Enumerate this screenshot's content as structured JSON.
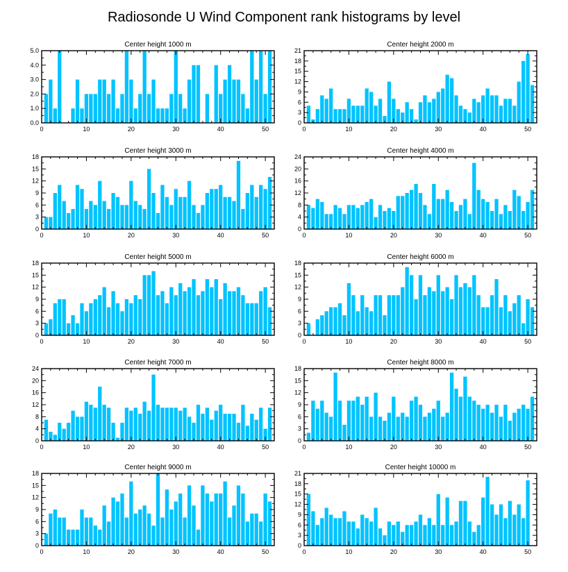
{
  "figure": {
    "title": "Radiosonde U Wind Component rank histograms by level",
    "bar_color": "#00c3ff"
  },
  "chart_data": [
    {
      "type": "bar",
      "title": "Center height 1000 m",
      "xlim": [
        0,
        52
      ],
      "ylim": [
        0,
        5
      ],
      "yticks": [
        0,
        1,
        2,
        3,
        4,
        5
      ],
      "ytick_labels": [
        "0.0",
        "1.0",
        "2.0",
        "3.0",
        "4.0",
        "5.0"
      ],
      "xticks": [
        0,
        10,
        20,
        30,
        40,
        50
      ],
      "values": [
        2,
        3,
        1,
        5,
        0,
        0,
        1,
        3,
        1,
        2,
        2,
        2,
        3,
        3,
        2,
        3,
        1,
        2,
        5,
        3,
        1,
        2,
        5,
        2,
        3,
        1,
        1,
        1,
        2,
        5,
        2,
        1,
        3,
        4,
        4,
        0,
        2,
        0,
        4,
        2,
        3,
        4,
        3,
        3,
        2,
        1,
        5,
        3,
        5,
        2,
        5
      ]
    },
    {
      "type": "bar",
      "title": "Center height 2000 m",
      "xlim": [
        0,
        52
      ],
      "ylim": [
        0,
        21
      ],
      "yticks": [
        0,
        3,
        6,
        9,
        12,
        15,
        18,
        21
      ],
      "ytick_labels": [
        "0",
        "3",
        "6",
        "9",
        "12",
        "15",
        "18",
        "21"
      ],
      "xticks": [
        0,
        10,
        20,
        30,
        40,
        50
      ],
      "values": [
        5,
        1,
        4,
        8,
        7,
        10,
        4,
        4,
        4,
        7,
        5,
        5,
        5,
        10,
        9,
        5,
        7,
        2,
        12,
        7,
        4,
        3,
        6,
        4,
        1,
        6,
        8,
        6,
        7,
        9,
        10,
        14,
        13,
        8,
        5,
        4,
        3,
        7,
        6,
        8,
        10,
        8,
        8,
        5,
        7,
        7,
        5,
        12,
        18,
        20,
        11
      ]
    },
    {
      "type": "bar",
      "title": "Center height 3000 m",
      "xlim": [
        0,
        52
      ],
      "ylim": [
        0,
        18
      ],
      "yticks": [
        0,
        3,
        6,
        9,
        12,
        15,
        18
      ],
      "ytick_labels": [
        "0",
        "3",
        "6",
        "9",
        "12",
        "15",
        "18"
      ],
      "xticks": [
        0,
        10,
        20,
        30,
        40,
        50
      ],
      "values": [
        3,
        3,
        9,
        11,
        7,
        4,
        5,
        11,
        10,
        5,
        7,
        6,
        12,
        7,
        5,
        9,
        8,
        6,
        6,
        12,
        7,
        6,
        5,
        15,
        9,
        4,
        11,
        8,
        6,
        10,
        8,
        8,
        12,
        6,
        4,
        6,
        9,
        10,
        10,
        11,
        8,
        8,
        7,
        17,
        5,
        9,
        11,
        8,
        11,
        10,
        13
      ]
    },
    {
      "type": "bar",
      "title": "Center height 4000 m",
      "xlim": [
        0,
        52
      ],
      "ylim": [
        0,
        24
      ],
      "yticks": [
        0,
        4,
        8,
        12,
        16,
        20,
        24
      ],
      "ytick_labels": [
        "0",
        "4",
        "8",
        "12",
        "16",
        "20",
        "24"
      ],
      "xticks": [
        0,
        10,
        20,
        30,
        40,
        50
      ],
      "values": [
        8,
        7,
        10,
        9,
        5,
        5,
        8,
        7,
        5,
        8,
        8,
        7,
        8,
        9,
        10,
        4,
        8,
        6,
        7,
        6,
        11,
        11,
        12,
        13,
        15,
        12,
        8,
        5,
        15,
        10,
        10,
        13,
        9,
        6,
        8,
        10,
        5,
        22,
        13,
        10,
        9,
        6,
        10,
        5,
        8,
        6,
        13,
        11,
        6,
        9,
        13
      ]
    },
    {
      "type": "bar",
      "title": "Center height 5000 m",
      "xlim": [
        0,
        52
      ],
      "ylim": [
        0,
        18
      ],
      "yticks": [
        0,
        3,
        6,
        9,
        12,
        15,
        18
      ],
      "ytick_labels": [
        "0",
        "3",
        "6",
        "9",
        "12",
        "15",
        "18"
      ],
      "xticks": [
        0,
        10,
        20,
        30,
        40,
        50
      ],
      "values": [
        3,
        4,
        8,
        9,
        9,
        3,
        5,
        3,
        8,
        6,
        8,
        9,
        10,
        12,
        7,
        11,
        8,
        6,
        9,
        8,
        10,
        9,
        15,
        15,
        16,
        10,
        11,
        8,
        12,
        10,
        13,
        11,
        12,
        14,
        10,
        11,
        14,
        12,
        14,
        9,
        13,
        11,
        11,
        12,
        10,
        8,
        8,
        8,
        11,
        12,
        7
      ]
    },
    {
      "type": "bar",
      "title": "Center height 6000 m",
      "xlim": [
        0,
        52
      ],
      "ylim": [
        0,
        18
      ],
      "yticks": [
        0,
        3,
        6,
        9,
        12,
        15,
        18
      ],
      "ytick_labels": [
        "0",
        "3",
        "6",
        "9",
        "12",
        "15",
        "18"
      ],
      "xticks": [
        0,
        10,
        20,
        30,
        40,
        50
      ],
      "values": [
        3,
        0,
        4,
        5,
        6,
        7,
        7,
        8,
        5,
        13,
        10,
        6,
        10,
        7,
        6,
        10,
        10,
        5,
        10,
        10,
        10,
        12,
        17,
        15,
        9,
        15,
        10,
        12,
        11,
        15,
        11,
        12,
        9,
        15,
        12,
        13,
        12,
        15,
        10,
        7,
        7,
        10,
        14,
        7,
        10,
        6,
        8,
        10,
        3,
        9,
        7
      ]
    },
    {
      "type": "bar",
      "title": "Center height 7000 m",
      "xlim": [
        0,
        52
      ],
      "ylim": [
        0,
        24
      ],
      "yticks": [
        0,
        4,
        8,
        12,
        16,
        20,
        24
      ],
      "ytick_labels": [
        "0",
        "4",
        "8",
        "12",
        "16",
        "20",
        "24"
      ],
      "xticks": [
        0,
        10,
        20,
        30,
        40,
        50
      ],
      "values": [
        7,
        3,
        2,
        6,
        4,
        6,
        10,
        8,
        8,
        13,
        12,
        11,
        18,
        12,
        11,
        6,
        1,
        6,
        11,
        10,
        11,
        9,
        13,
        10,
        22,
        12,
        11,
        11,
        11,
        11,
        10,
        11,
        8,
        6,
        12,
        9,
        11,
        7,
        10,
        12,
        9,
        9,
        9,
        6,
        12,
        5,
        9,
        7,
        11,
        4,
        11
      ]
    },
    {
      "type": "bar",
      "title": "Center height 8000 m",
      "xlim": [
        0,
        52
      ],
      "ylim": [
        0,
        18
      ],
      "yticks": [
        0,
        3,
        6,
        9,
        12,
        15,
        18
      ],
      "ytick_labels": [
        "0",
        "3",
        "6",
        "9",
        "12",
        "15",
        "18"
      ],
      "xticks": [
        0,
        10,
        20,
        30,
        40,
        50
      ],
      "values": [
        2,
        10,
        8,
        10,
        7,
        6,
        17,
        10,
        4,
        10,
        10,
        11,
        9,
        11,
        6,
        12,
        6,
        5,
        7,
        11,
        6,
        7,
        6,
        10,
        11,
        9,
        6,
        7,
        8,
        10,
        6,
        7,
        17,
        13,
        11,
        16,
        11,
        10,
        9,
        8,
        9,
        7,
        9,
        6,
        9,
        5,
        7,
        8,
        9,
        8,
        11
      ]
    },
    {
      "type": "bar",
      "title": "Center height 9000 m",
      "xlim": [
        0,
        52
      ],
      "ylim": [
        0,
        18
      ],
      "yticks": [
        0,
        3,
        6,
        9,
        12,
        15,
        18
      ],
      "ytick_labels": [
        "0",
        "3",
        "6",
        "9",
        "12",
        "15",
        "18"
      ],
      "xticks": [
        0,
        10,
        20,
        30,
        40,
        50
      ],
      "values": [
        3,
        8,
        9,
        7,
        7,
        4,
        4,
        4,
        9,
        7,
        7,
        5,
        4,
        10,
        6,
        12,
        11,
        13,
        7,
        16,
        8,
        9,
        10,
        8,
        5,
        18,
        7,
        14,
        9,
        11,
        13,
        7,
        15,
        10,
        4,
        15,
        13,
        11,
        13,
        13,
        16,
        7,
        10,
        15,
        13,
        6,
        8,
        8,
        6,
        13,
        11
      ]
    },
    {
      "type": "bar",
      "title": "Center height 10000 m",
      "xlim": [
        0,
        52
      ],
      "ylim": [
        0,
        21
      ],
      "yticks": [
        0,
        3,
        6,
        9,
        12,
        15,
        18,
        21
      ],
      "ytick_labels": [
        "0",
        "3",
        "6",
        "9",
        "12",
        "15",
        "18",
        "21"
      ],
      "xticks": [
        0,
        10,
        20,
        30,
        40,
        50
      ],
      "values": [
        15,
        10,
        6,
        8,
        11,
        9,
        8,
        8,
        10,
        7,
        7,
        5,
        9,
        8,
        7,
        11,
        5,
        3,
        7,
        6,
        7,
        4,
        6,
        6,
        7,
        9,
        6,
        8,
        6,
        15,
        6,
        14,
        6,
        7,
        13,
        13,
        7,
        4,
        6,
        14,
        20,
        12,
        9,
        12,
        8,
        13,
        9,
        12,
        8,
        19
      ]
    }
  ]
}
